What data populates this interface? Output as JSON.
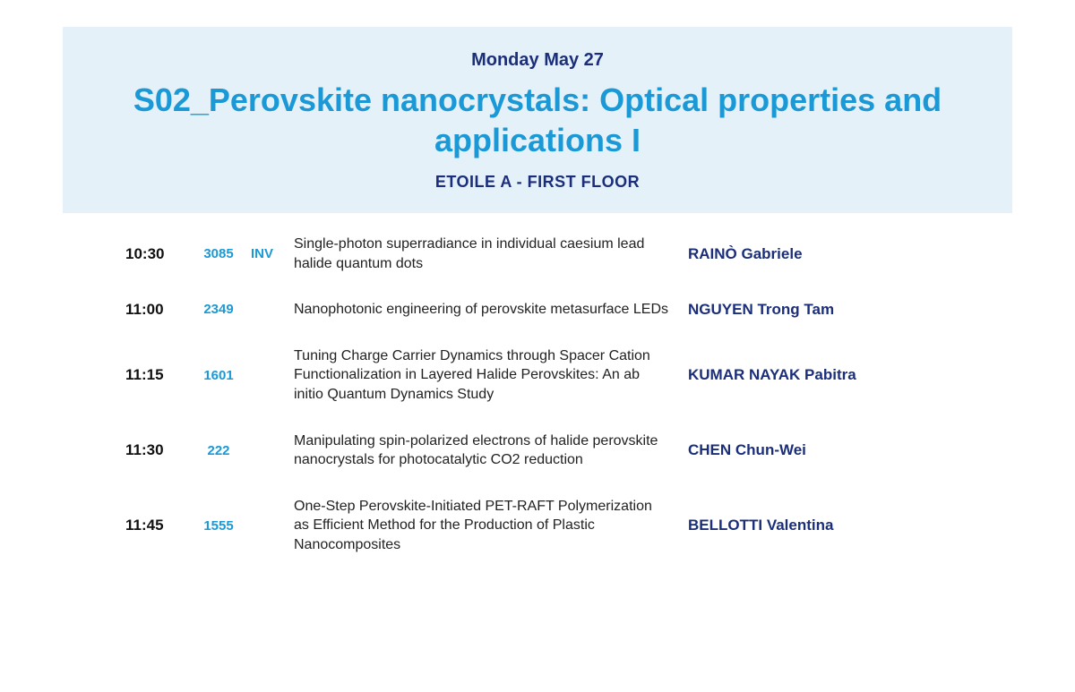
{
  "header": {
    "date": "Monday May 27",
    "session_title": "S02_Perovskite nanocrystals: Optical properties and applications I",
    "room": "ETOILE A - FIRST FLOOR"
  },
  "colors": {
    "header_bg": "#e4f1f9",
    "accent_blue": "#1a99d6",
    "dark_blue": "#1b2e7a",
    "body_text": "#222222",
    "page_bg": "#ffffff"
  },
  "talks": [
    {
      "time": "10:30",
      "id": "3085",
      "tag": "INV",
      "title": "Single-photon superradiance in individual caesium lead halide quantum dots",
      "presenter": "RAINÒ Gabriele"
    },
    {
      "time": "11:00",
      "id": "2349",
      "tag": "",
      "title": "Nanophotonic engineering of perovskite metasurface LEDs",
      "presenter": "NGUYEN Trong Tam"
    },
    {
      "time": "11:15",
      "id": "1601",
      "tag": "",
      "title": "Tuning Charge Carrier Dynamics through Spacer Cation Functionalization in Layered Halide Perovskites: An ab initio Quantum Dynamics Study",
      "presenter": "KUMAR NAYAK Pabitra"
    },
    {
      "time": "11:30",
      "id": "222",
      "tag": "",
      "title": "Manipulating spin-polarized electrons of halide perovskite nanocrystals for photocatalytic CO2 reduction",
      "presenter": "CHEN Chun-Wei"
    },
    {
      "time": "11:45",
      "id": "1555",
      "tag": "",
      "title": "One-Step Perovskite-Initiated PET-RAFT Polymerization as Efficient Method for the Production of Plastic Nanocomposites",
      "presenter": "BELLOTTI Valentina"
    }
  ]
}
